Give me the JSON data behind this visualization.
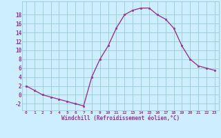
{
  "x": [
    0,
    1,
    2,
    3,
    4,
    5,
    6,
    7,
    8,
    9,
    10,
    11,
    12,
    13,
    14,
    15,
    16,
    17,
    18,
    19,
    20,
    21,
    22,
    23
  ],
  "y": [
    2,
    1,
    0,
    -0.5,
    -1,
    -1.5,
    -2,
    -2.5,
    4,
    8,
    11,
    15,
    18,
    19,
    19.5,
    19.5,
    18,
    17,
    15,
    11,
    8,
    6.5,
    6,
    5.5
  ],
  "line_color": "#993399",
  "marker_color": "#993399",
  "bg_color": "#cceeff",
  "grid_color": "#99cccc",
  "xlabel": "Windchill (Refroidissement éolien,°C)",
  "xlabel_color": "#993399",
  "xtick_labels": [
    "0",
    "1",
    "2",
    "3",
    "4",
    "5",
    "6",
    "7",
    "8",
    "9",
    "10",
    "11",
    "12",
    "13",
    "14",
    "15",
    "16",
    "17",
    "18",
    "19",
    "20",
    "21",
    "22",
    "23"
  ],
  "ytick_values": [
    -2,
    0,
    2,
    4,
    6,
    8,
    10,
    12,
    14,
    16,
    18
  ],
  "ylim": [
    -3.5,
    21
  ],
  "xlim": [
    -0.5,
    23.5
  ],
  "figwidth": 3.2,
  "figheight": 2.0,
  "dpi": 100
}
